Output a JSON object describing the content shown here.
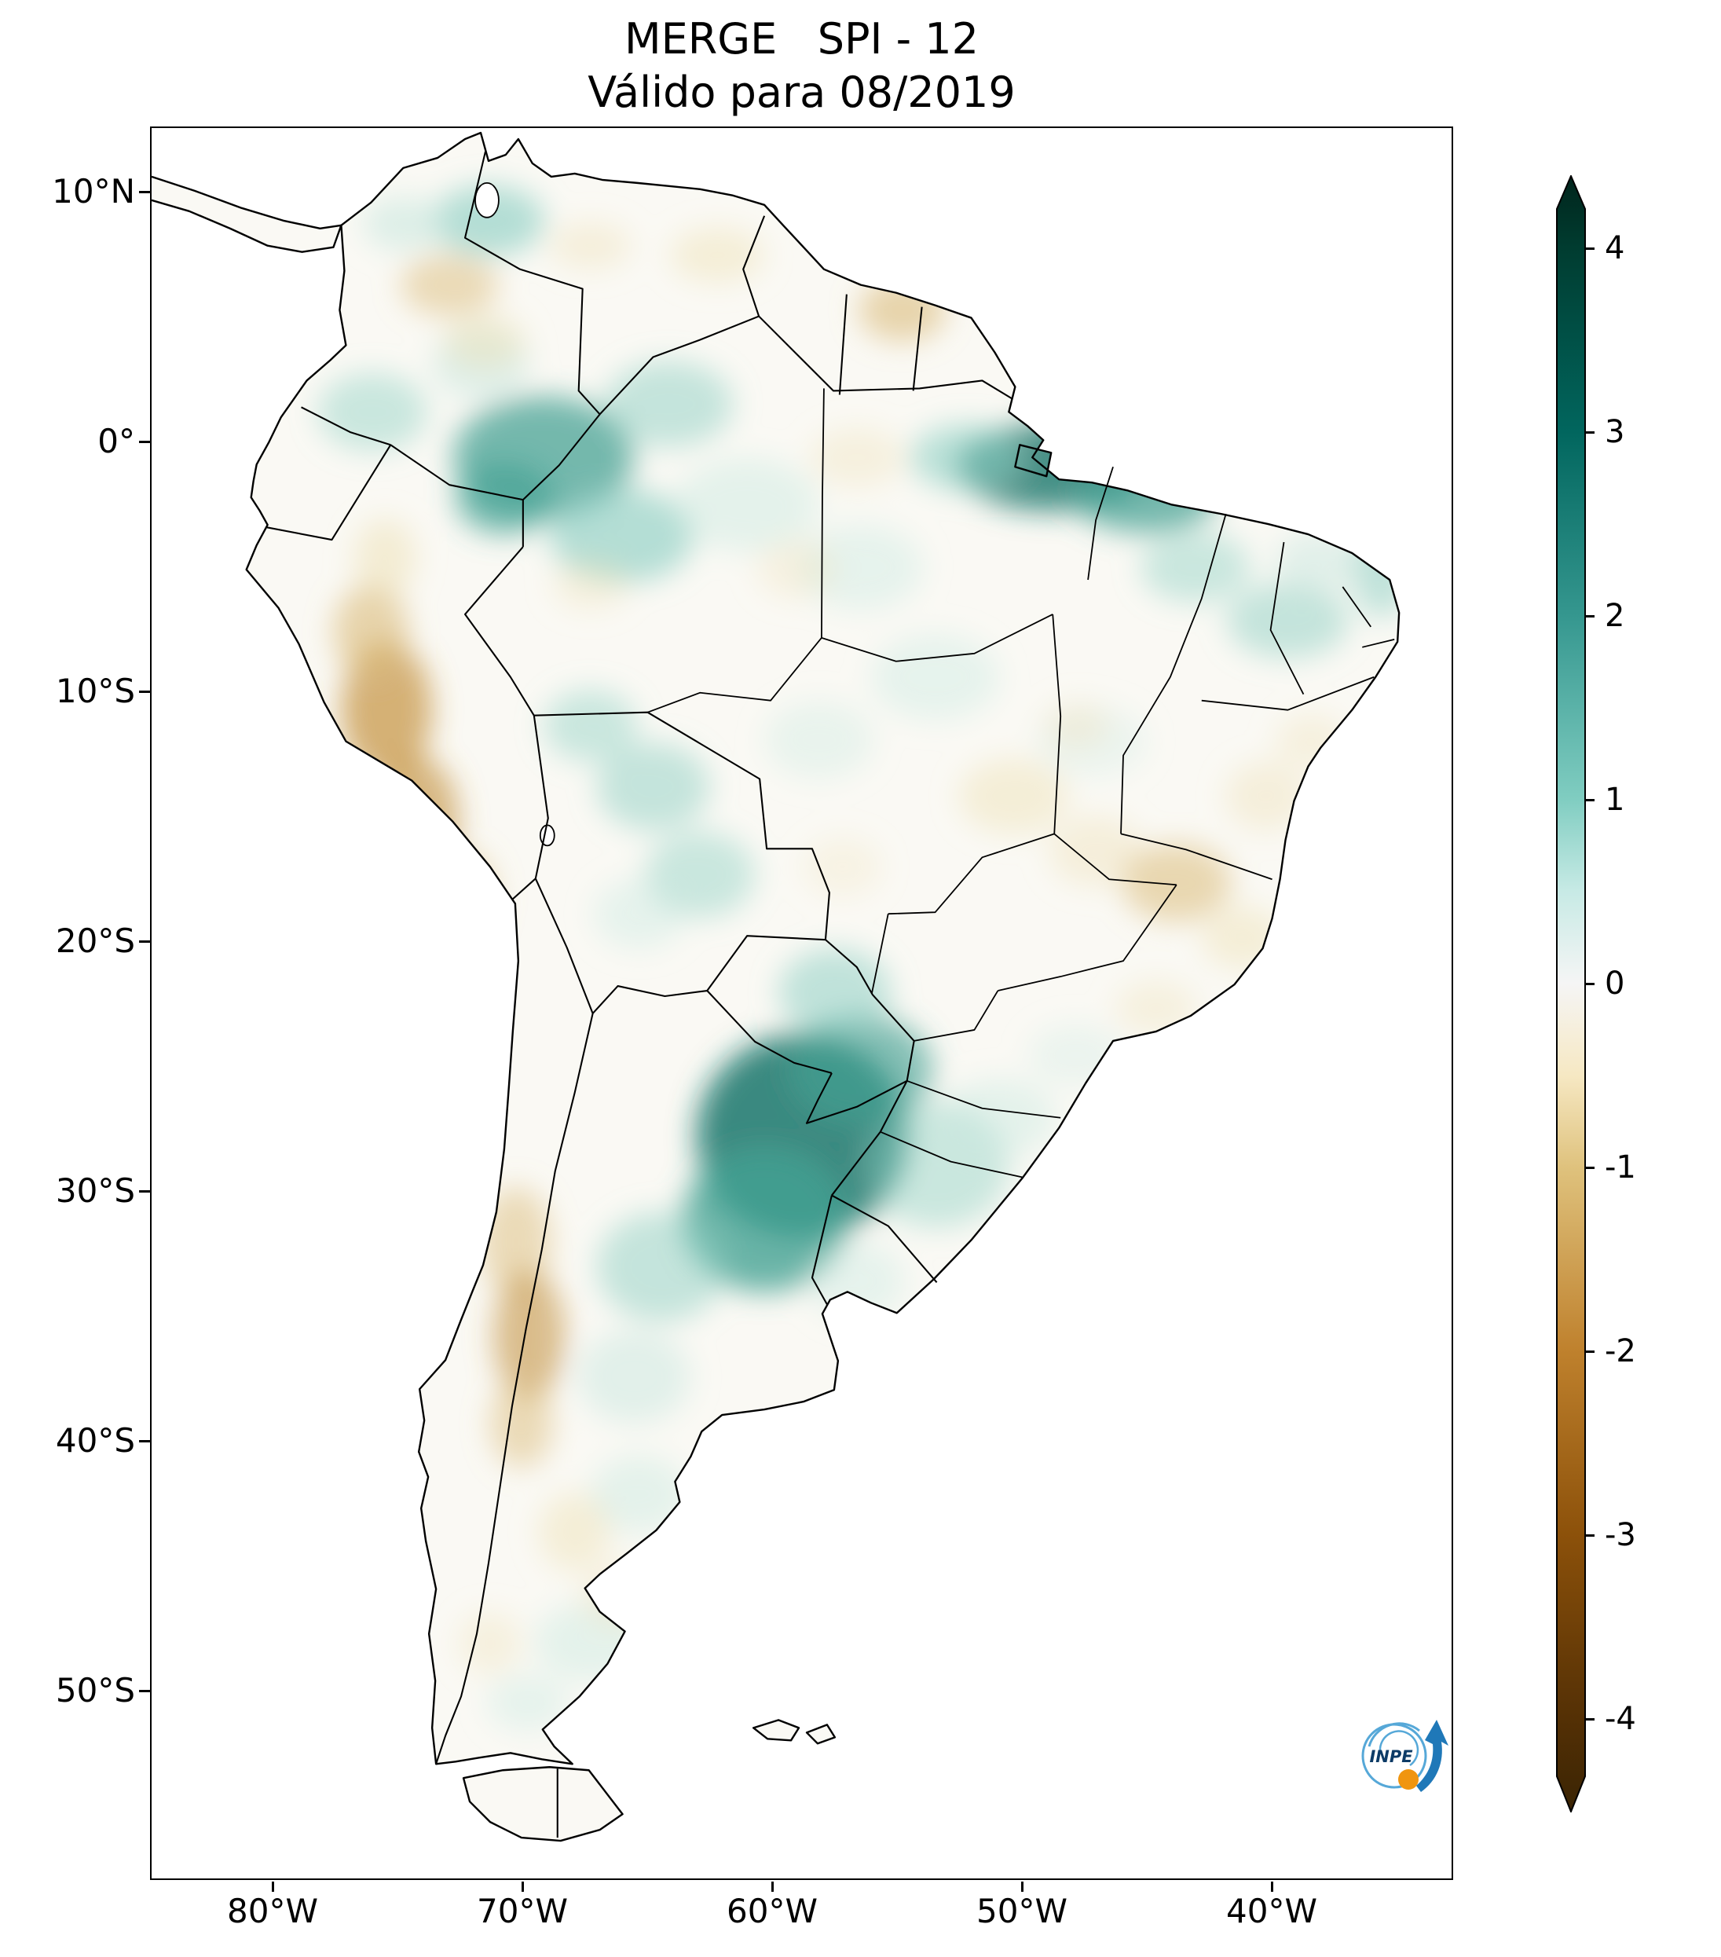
{
  "title": "MERGE   SPI - 12",
  "subtitle": "Válido para 08/2019",
  "axes": {
    "y_ticks": [
      "10°N",
      "0°",
      "10°S",
      "20°S",
      "30°S",
      "40°S",
      "50°S"
    ],
    "x_ticks": [
      "80°W",
      "70°W",
      "60°W",
      "50°W",
      "40°W"
    ]
  },
  "colorbar": {
    "tick_labels": [
      "4",
      "3",
      "2",
      "1",
      "0",
      "-1",
      "-2",
      "-3",
      "-4"
    ],
    "range": [
      -4,
      4
    ],
    "extend": "both",
    "colors": {
      "wet_dark": "#003c30",
      "wet": "#35978f",
      "wet_light": "#80cdc1",
      "neutral": "#f5f5f5",
      "dry_light": "#dfc27d",
      "dry": "#bf812d",
      "dry_dark": "#543005"
    }
  },
  "logo": {
    "text": "INPE"
  },
  "chart_data": {
    "type": "heatmap",
    "title": "MERGE   SPI - 12",
    "subtitle": "Válido para 08/2019",
    "region_shown": "South America",
    "x_tick_labels": [
      "80°W",
      "70°W",
      "60°W",
      "50°W",
      "40°W"
    ],
    "y_tick_labels": [
      "10°N",
      "0°",
      "10°S",
      "20°S",
      "30°S",
      "40°S",
      "50°S"
    ],
    "colorbar_ticks": [
      4,
      3,
      2,
      1,
      0,
      -1,
      -2,
      -3,
      -4
    ],
    "colorbar_range": [
      -4,
      4
    ],
    "colormap_family": "brown-white-teal diverging",
    "legend_position": "right",
    "visible_pattern": [
      {
        "region": "southern Paraguay / NE Argentina / W Rio Grande do Sul",
        "spi": "+2 to +3 (wet)"
      },
      {
        "region": "NE Pará and coastal Maranhão",
        "spi": "+2 to +3 (wet)"
      },
      {
        "region": "central/upper Amazonas",
        "spi": "+1 to +2 (wet)"
      },
      {
        "region": "Peruvian coast and Andes",
        "spi": "-1 to -2 (dry)"
      },
      {
        "region": "Minas Gerais",
        "spi": "-1 to -2 (dry)"
      },
      {
        "region": "central Chile / Argentina Andes 30-38S",
        "spi": "-1 to -2 (dry)"
      },
      {
        "region": "most of interior Brazil",
        "spi": "near 0"
      }
    ]
  }
}
